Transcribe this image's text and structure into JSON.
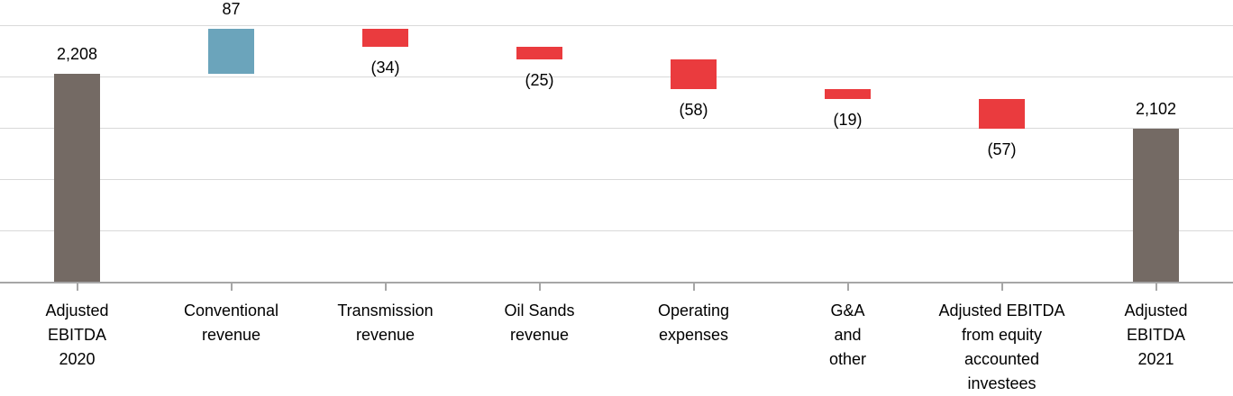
{
  "chart_data": {
    "type": "bar",
    "subtype": "waterfall",
    "title": "",
    "xlabel": "",
    "ylabel": "",
    "legend": "none",
    "grid_on": true,
    "y_axis_tick_labels_visible": false,
    "y_gridline_count": 5,
    "categories": [
      "Adjusted EBITDA 2020",
      "Conventional revenue",
      "Transmission revenue",
      "Oil Sands revenue",
      "Operating expenses",
      "G&A and other",
      "Adjusted EBITDA from equity accounted investees",
      "Adjusted EBITDA 2021"
    ],
    "bars": [
      {
        "kind": "total",
        "value": 2208,
        "display": "2,208",
        "label_lines": [
          "Adjusted",
          "EBITDA",
          "2020"
        ]
      },
      {
        "kind": "increase",
        "value": 87,
        "display": "87",
        "label_lines": [
          "Conventional",
          "revenue"
        ]
      },
      {
        "kind": "decrease",
        "value": -34,
        "display": "(34)",
        "label_lines": [
          "Transmission",
          "revenue"
        ]
      },
      {
        "kind": "decrease",
        "value": -25,
        "display": "(25)",
        "label_lines": [
          "Oil Sands",
          "revenue"
        ]
      },
      {
        "kind": "decrease",
        "value": -58,
        "display": "(58)",
        "label_lines": [
          "Operating",
          "expenses"
        ]
      },
      {
        "kind": "decrease",
        "value": -19,
        "display": "(19)",
        "label_lines": [
          "G&A",
          "and",
          "other"
        ]
      },
      {
        "kind": "decrease",
        "value": -57,
        "display": "(57)",
        "label_lines": [
          "Adjusted EBITDA",
          "from equity",
          "accounted",
          "investees"
        ]
      },
      {
        "kind": "total",
        "value": 2102,
        "display": "2,102",
        "label_lines": [
          "Adjusted",
          "EBITDA",
          "2021"
        ]
      }
    ],
    "colors": {
      "total": "#746A64",
      "increase": "#6BA4BB",
      "decrease": "#EA3B3E",
      "gridline": "#D9D9D9",
      "axis": "#A6A6A6",
      "label_text": "#000000",
      "background": "#FFFFFF"
    }
  }
}
